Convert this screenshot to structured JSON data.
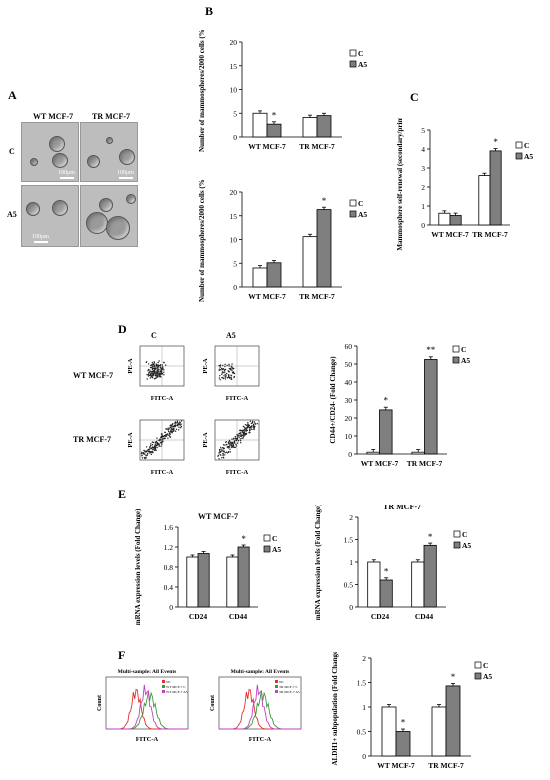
{
  "panels": {
    "A": "A",
    "B": "B",
    "C": "C",
    "D": "D",
    "E": "E",
    "F": "F"
  },
  "panelA": {
    "col_labels": [
      "WT MCF-7",
      "TR MCF-7"
    ],
    "row_labels": [
      "C",
      "A5"
    ],
    "scale_text": "100μm"
  },
  "panelD": {
    "col_labels": [
      "C",
      "A5"
    ],
    "row_labels": [
      "WT MCF-7",
      "TR MCF-7"
    ],
    "x_axis": "FITC-A",
    "y_axis": "PE-A"
  },
  "panelF": {
    "hist_titles": [
      "Multi-sample: All Events",
      "Multi-sample: All Events"
    ],
    "x_axis": "FITC-A",
    "y_axis": "Count",
    "legend_left": [
      "NC",
      "WT MCF-7 C",
      "WT MCF-7 A5"
    ],
    "legend_right": [
      "NC",
      "TR MCF-7 C",
      "TR MCF-7 A5"
    ]
  },
  "colors": {
    "c_bar": "#ffffff",
    "a5_bar": "#7f7f7f",
    "nc_line": "#e03030",
    "c_line": "#3a9a3a",
    "a5_line": "#c040c0"
  },
  "chart_data": [
    {
      "id": "B1",
      "type": "bar",
      "title": "",
      "categories": [
        "WT MCF-7",
        "TR MCF-7"
      ],
      "series": [
        {
          "name": "C",
          "values": [
            5.0,
            4.1
          ]
        },
        {
          "name": "A5",
          "values": [
            2.7,
            4.5
          ]
        }
      ],
      "ylabel": "Number of mammospheres/2000 cells (%)",
      "ylim": [
        0,
        20
      ],
      "yticks": [
        "0",
        "5",
        "10",
        "15",
        "20"
      ],
      "annotations": [
        "*"
      ],
      "legend": "right"
    },
    {
      "id": "B2",
      "type": "bar",
      "title": "",
      "categories": [
        "WT MCF-7",
        "TR MCF-7"
      ],
      "series": [
        {
          "name": "C",
          "values": [
            4.0,
            10.6
          ]
        },
        {
          "name": "A5",
          "values": [
            5.1,
            16.3
          ]
        }
      ],
      "ylabel": "Number of mammospheres/2000 cells (%)",
      "ylim": [
        0,
        20
      ],
      "yticks": [
        "0",
        "5",
        "10",
        "15",
        "20"
      ],
      "annotations": [
        "*"
      ],
      "legend": "right"
    },
    {
      "id": "C",
      "type": "bar",
      "title": "",
      "categories": [
        "WT MCF-7",
        "TR MCF-7"
      ],
      "series": [
        {
          "name": "C",
          "values": [
            0.62,
            2.6
          ]
        },
        {
          "name": "A5",
          "values": [
            0.5,
            3.9
          ]
        }
      ],
      "ylabel": "Mammosphere self-renewal (secondary/primary)",
      "ylim": [
        0,
        5
      ],
      "yticks": [
        "0",
        "1",
        "2",
        "3",
        "4",
        "5"
      ],
      "annotations": [
        "*"
      ],
      "legend": "right"
    },
    {
      "id": "D",
      "type": "bar",
      "title": "",
      "categories": [
        "WT MCF-7",
        "TR MCF-7"
      ],
      "series": [
        {
          "name": "C",
          "values": [
            1,
            1
          ]
        },
        {
          "name": "A5",
          "values": [
            24.5,
            52.5
          ]
        }
      ],
      "ylabel": "CD44+/CD24- (Fold Change)",
      "ylim": [
        0,
        60
      ],
      "yticks": [
        "0",
        "10",
        "20",
        "30",
        "40",
        "50",
        "60"
      ],
      "annotations": [
        "*",
        "**"
      ],
      "legend": "right"
    },
    {
      "id": "E1",
      "type": "bar",
      "title": "WT MCF-7",
      "categories": [
        "CD24",
        "CD44"
      ],
      "series": [
        {
          "name": "C",
          "values": [
            1.0,
            1.0
          ]
        },
        {
          "name": "A5",
          "values": [
            1.07,
            1.2
          ]
        }
      ],
      "ylabel": "mRNA expression levels (Fold Change)",
      "ylim": [
        0,
        1.6
      ],
      "yticks": [
        "0",
        "0.4",
        "0.8",
        "1.2",
        "1.6"
      ],
      "annotations": [
        "*"
      ],
      "legend": "right"
    },
    {
      "id": "E2",
      "type": "bar",
      "title": "TR MCF-7",
      "categories": [
        "CD24",
        "CD44"
      ],
      "series": [
        {
          "name": "C",
          "values": [
            1.0,
            1.0
          ]
        },
        {
          "name": "A5",
          "values": [
            0.6,
            1.37
          ]
        }
      ],
      "ylabel": "mRNA expression levels (Fold Change)",
      "ylim": [
        0,
        2
      ],
      "yticks": [
        "0",
        "0.5",
        "1",
        "1.5",
        "2"
      ],
      "annotations": [
        "*",
        "*"
      ],
      "legend": "right"
    },
    {
      "id": "F",
      "type": "bar",
      "title": "",
      "categories": [
        "WT MCF-7",
        "TR MCF-7"
      ],
      "series": [
        {
          "name": "C",
          "values": [
            1.0,
            1.0
          ]
        },
        {
          "name": "A5",
          "values": [
            0.5,
            1.43
          ]
        }
      ],
      "ylabel": "ALDH1+ subpopulation (Fold Change)",
      "ylim": [
        0,
        2
      ],
      "yticks": [
        "0",
        "0.5",
        "1",
        "1.5",
        "2"
      ],
      "annotations": [
        "*",
        "*"
      ],
      "legend": "right"
    }
  ]
}
